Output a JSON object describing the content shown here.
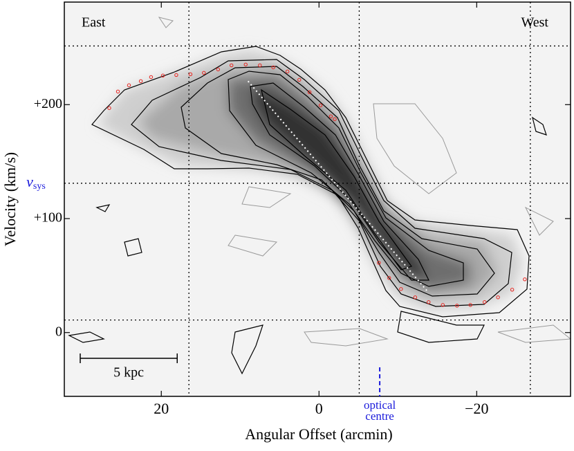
{
  "chart_data": {
    "type": "pv-diagram",
    "xlabel": "Angular Offset (arcmin)",
    "ylabel": "Velocity (km/s)",
    "xlim": [
      32.3,
      -31.9
    ],
    "ylim": [
      -56,
      290
    ],
    "xticks": [
      20,
      0,
      {
        "value": -20,
        "label": "−20"
      }
    ],
    "yticks": [
      0,
      {
        "value": 100,
        "label": "+100"
      },
      {
        "value": 200,
        "label": "+200"
      }
    ],
    "annotations": [
      "East",
      "West"
    ],
    "x": [
      26.6,
      25.5,
      24.1,
      22.6,
      21.3,
      19.8,
      18.1,
      16.3,
      14.6,
      12.8,
      11.1,
      9.3,
      7.5,
      5.8,
      4.0,
      2.5,
      1.2,
      -0.2,
      -1.5,
      -2.0,
      -7.6,
      -8.9,
      -10.4,
      -12.2,
      -13.9,
      -15.7,
      -17.5,
      -19.2,
      -21.0,
      -22.7,
      -24.5,
      -26.1
    ],
    "values": [
      197,
      211.5,
      217,
      220.6,
      224.2,
      225.5,
      226,
      226.7,
      227.9,
      230.9,
      234.5,
      235.2,
      234.5,
      232.7,
      229.1,
      221.8,
      210.9,
      199.4,
      189.7,
      187.3,
      61.2,
      47.9,
      38.2,
      30.9,
      26.7,
      24.2,
      23.6,
      24.2,
      26.7,
      30.9,
      37.6,
      46.7
    ],
    "color": "#e8231e",
    "trend": {
      "x": [
        9.0,
        -13.8
      ],
      "values": [
        220.6,
        35.8
      ],
      "color": "#ffffff"
    },
    "reference_lines": {
      "x": [
        16.5,
        -5.1,
        -26.8
      ],
      "y": [
        251.5,
        131,
        11
      ]
    },
    "vsys_label": "v",
    "vsys_sub": "sys",
    "optical_centre": {
      "x": -7.7,
      "label": [
        "optical",
        "centre"
      ],
      "color": "#1a1adb"
    },
    "scale_bar": {
      "label": "5 kpc",
      "length": 12.3
    }
  }
}
